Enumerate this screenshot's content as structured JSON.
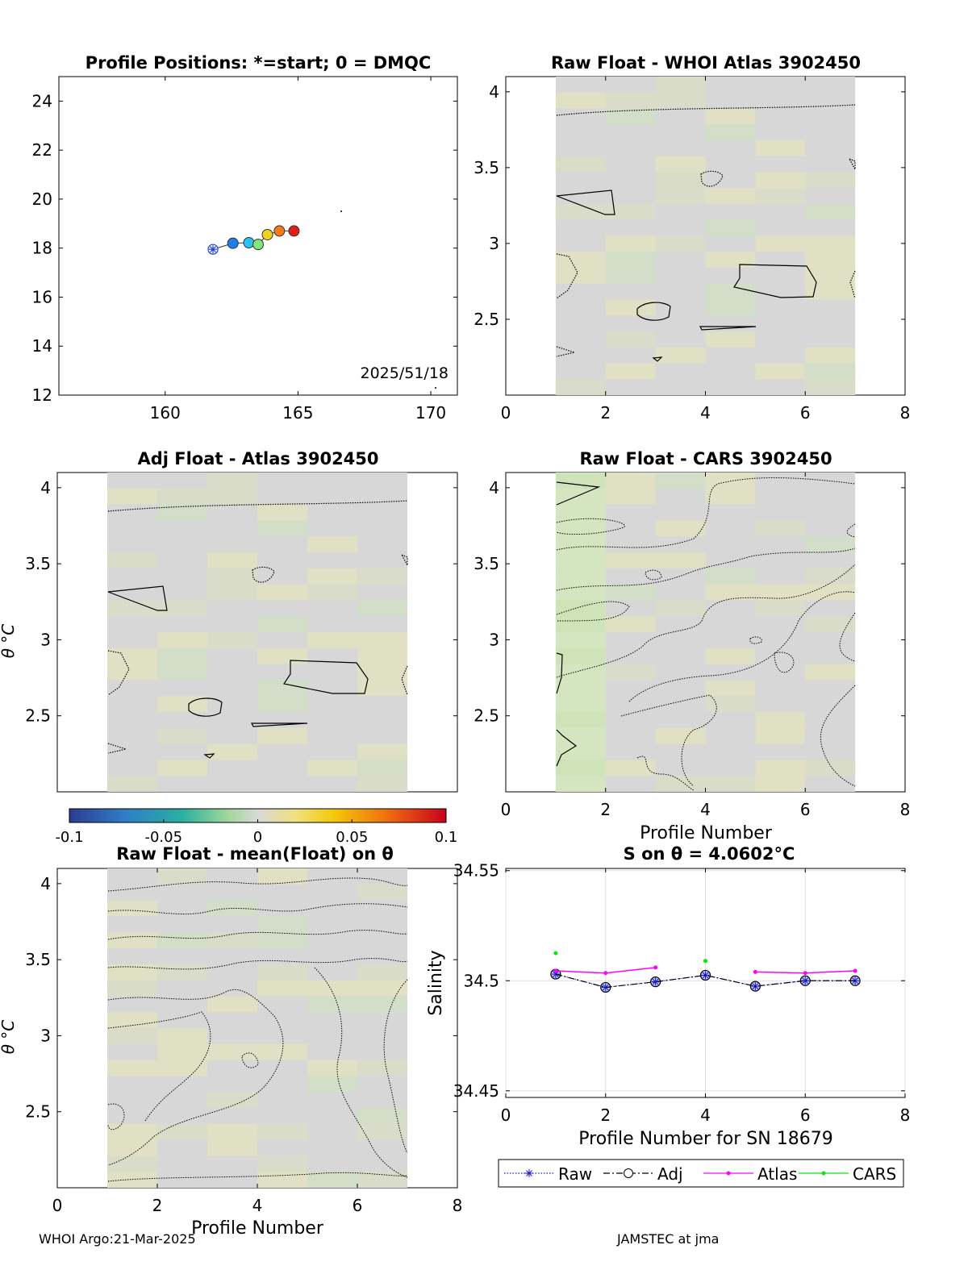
{
  "footer": {
    "left": "WHOI Argo:21-Mar-2025",
    "right": "JAMSTEC at jma"
  },
  "colorbar": {
    "ticks": [
      "-0.1",
      "-0.05",
      "0",
      "0.05",
      "0.1"
    ],
    "range": [
      -0.1,
      0.1
    ]
  },
  "chart_data": [
    {
      "id": "positions",
      "type": "scatter",
      "title": "Profile Positions: *=start; 0 = DMQC",
      "xlim": [
        156,
        171
      ],
      "ylim": [
        12,
        25
      ],
      "xticks": [
        "160",
        "165",
        "170"
      ],
      "yticks": [
        "12",
        "14",
        "16",
        "18",
        "20",
        "22",
        "24"
      ],
      "annotation": "2025/51/18",
      "points": [
        {
          "lon": 161.8,
          "lat": 17.95,
          "color": "#1f3fd6",
          "marker": "star"
        },
        {
          "lon": 162.55,
          "lat": 18.2,
          "color": "#1e7fe8",
          "marker": "circle"
        },
        {
          "lon": 163.15,
          "lat": 18.22,
          "color": "#2dc2f0",
          "marker": "circle"
        },
        {
          "lon": 163.5,
          "lat": 18.15,
          "color": "#7de87a",
          "marker": "circle"
        },
        {
          "lon": 163.85,
          "lat": 18.55,
          "color": "#f2d21c",
          "marker": "circle"
        },
        {
          "lon": 164.3,
          "lat": 18.7,
          "color": "#f27a18",
          "marker": "circle"
        },
        {
          "lon": 164.85,
          "lat": 18.7,
          "color": "#e01e14",
          "marker": "circle"
        }
      ]
    },
    {
      "id": "raw-atlas",
      "type": "heatmap",
      "title": "Raw Float - WHOI Atlas  3902450",
      "xlim": [
        0,
        8
      ],
      "ylim": [
        2.0,
        4.1
      ],
      "xticks": [
        "0",
        "2",
        "4",
        "6",
        "8"
      ],
      "yticks": [
        "2.5",
        "3",
        "3.5",
        "4"
      ],
      "data_x_range": [
        1,
        7
      ]
    },
    {
      "id": "adj-atlas",
      "type": "heatmap",
      "title": "Adj Float - Atlas  3902450",
      "ylabel": "θ °C",
      "xlim": [
        0,
        8
      ],
      "ylim": [
        2.0,
        4.1
      ],
      "yticks": [
        "2.5",
        "3",
        "3.5",
        "4"
      ],
      "data_x_range": [
        1,
        7
      ]
    },
    {
      "id": "raw-cars",
      "type": "heatmap",
      "title": "Raw Float - CARS  3902450",
      "xlabel": "Profile Number",
      "xlim": [
        0,
        8
      ],
      "ylim": [
        2.0,
        4.1
      ],
      "xticks": [
        "0",
        "2",
        "4",
        "6",
        "8"
      ],
      "yticks": [
        "2.5",
        "3",
        "3.5",
        "4"
      ],
      "data_x_range": [
        1,
        7
      ]
    },
    {
      "id": "raw-mean",
      "type": "heatmap",
      "title": "Raw Float - mean(Float) on θ",
      "ylabel": "θ °C",
      "xlabel": "Profile Number",
      "xlim": [
        0,
        8
      ],
      "ylim": [
        2.0,
        4.1
      ],
      "xticks": [
        "0",
        "2",
        "4",
        "6",
        "8"
      ],
      "yticks": [
        "2.5",
        "3",
        "3.5",
        "4"
      ],
      "data_x_range": [
        1,
        7
      ]
    },
    {
      "id": "salinity",
      "type": "line",
      "title": "S on θ = 4.0602°C",
      "xlabel": "Profile Number for SN 18679",
      "ylabel": "Salinity",
      "xlim": [
        0,
        8
      ],
      "ylim": [
        34.447,
        34.551
      ],
      "xticks": [
        "0",
        "2",
        "4",
        "6",
        "8"
      ],
      "yticks": [
        "34.45",
        "34.5",
        "34.55"
      ],
      "grid": true,
      "legend_placement": "bottom",
      "series": [
        {
          "name": "Raw",
          "color": "#1a1ad6",
          "style": "dotted",
          "x": [
            1,
            2,
            3,
            4,
            5,
            6,
            7
          ],
          "y": [
            34.503,
            34.497,
            34.4995,
            34.5025,
            34.4975,
            34.5,
            34.5
          ]
        },
        {
          "name": "Adj",
          "color": "#000000",
          "style": "dashdot",
          "x": [
            1,
            2,
            3,
            4,
            5,
            6,
            7
          ],
          "y": [
            34.503,
            34.497,
            34.4995,
            34.5025,
            34.4975,
            34.5,
            34.5
          ]
        },
        {
          "name": "Atlas",
          "color": "#ff00ff",
          "style": "solid",
          "segments": [
            [
              [
                1,
                34.5045
              ],
              [
                2,
                34.5035
              ],
              [
                3,
                34.506
              ]
            ],
            [
              [
                5,
                34.504
              ],
              [
                6,
                34.5035
              ],
              [
                7,
                34.5045
              ]
            ]
          ]
        },
        {
          "name": "CARS",
          "color": "#00ee00",
          "style": "points",
          "x": [
            1,
            4
          ],
          "y": [
            34.5125,
            34.509
          ]
        }
      ]
    }
  ]
}
